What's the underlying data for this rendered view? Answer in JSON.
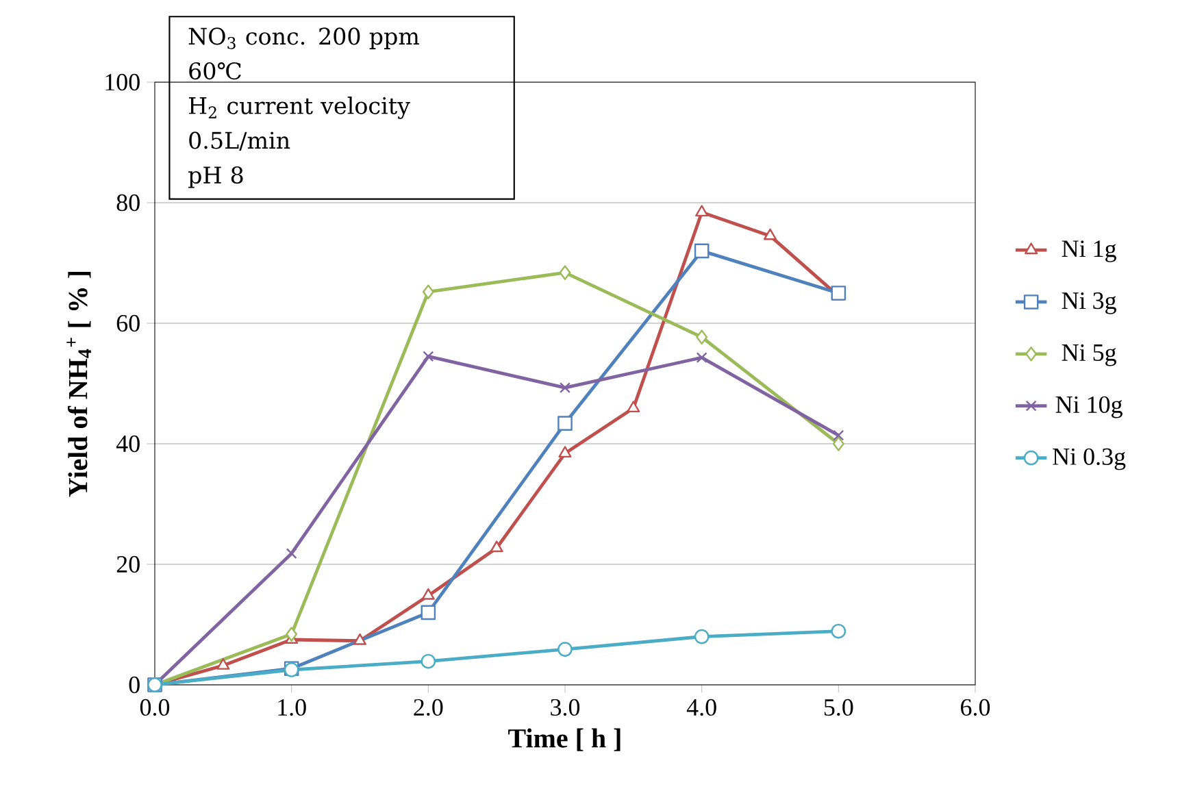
{
  "chart_data": {
    "type": "line",
    "xlabel": "Time [ h ]",
    "ylabel": "Yield of NH$_{4}$$^{+}$ [ % ]",
    "annotations": [
      "NO$_{3}$ conc. 200 ppm",
      "60℃",
      "H$_{2}$ current velocity",
      "0.5L/min",
      "pH 8"
    ],
    "xlim": [
      0,
      6
    ],
    "xticks": [
      {
        "value": 0,
        "label": "0.0"
      },
      {
        "value": 1,
        "label": "1.0"
      },
      {
        "value": 2,
        "label": "2.0"
      },
      {
        "value": 3,
        "label": "3.0"
      },
      {
        "value": 4,
        "label": "4.0"
      },
      {
        "value": 5,
        "label": "5.0"
      },
      {
        "value": 6,
        "label": "6.0"
      }
    ],
    "ylim": [
      0,
      100
    ],
    "yticks": [
      0,
      20,
      40,
      60,
      80,
      100
    ],
    "grid": "y",
    "legend": "right",
    "line_style": "solid",
    "series": [
      {
        "name": "Ni 1g",
        "color": "#c0504d",
        "marker": "triangle",
        "x": [
          0,
          0.5,
          1,
          1.5,
          2,
          2.5,
          3,
          3.5,
          4,
          4.5,
          5
        ],
        "values": [
          0,
          3.2,
          7.5,
          7.3,
          14.8,
          22.7,
          38.4,
          45.9,
          78.4,
          74.5,
          64.5
        ]
      },
      {
        "name": "Ni 3g",
        "color": "#4f81bd",
        "marker": "square",
        "x": [
          0,
          1,
          2,
          3,
          4,
          5
        ],
        "values": [
          0,
          2.7,
          12,
          43.4,
          72,
          65
        ]
      },
      {
        "name": "Ni 5g",
        "color": "#9bbb59",
        "marker": "diamond",
        "x": [
          0,
          1,
          2,
          3,
          4,
          5
        ],
        "values": [
          0,
          8.4,
          65.2,
          68.4,
          57.7,
          40
        ]
      },
      {
        "name": "Ni 10g",
        "color": "#8064a2",
        "marker": "cross",
        "x": [
          0,
          1,
          2,
          3,
          4,
          5
        ],
        "values": [
          0,
          21.8,
          54.5,
          49.3,
          54.3,
          41.4
        ]
      },
      {
        "name": "Ni 0.3g",
        "color": "#4bacc6",
        "marker": "circle",
        "x": [
          0,
          1,
          2,
          3,
          4,
          5
        ],
        "values": [
          0,
          2.5,
          3.9,
          5.9,
          8,
          8.9
        ]
      }
    ]
  }
}
